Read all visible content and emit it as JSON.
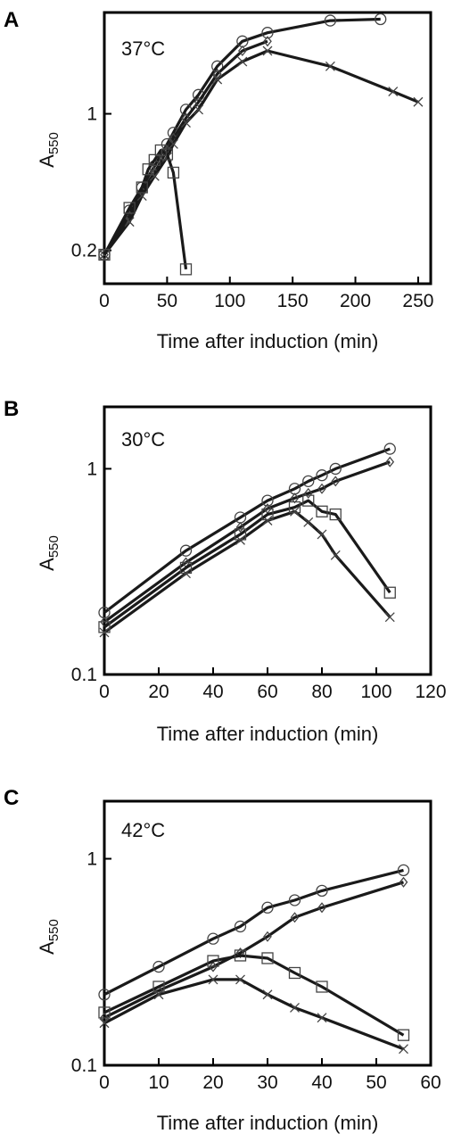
{
  "chart_data": [
    {
      "type": "line",
      "panel": "A",
      "temperature": "37°C",
      "xlabel": "Time after induction (min)",
      "ylabel": "A",
      "ylabel_sub": "550",
      "xlim": [
        0,
        260
      ],
      "xticks": [
        0,
        50,
        100,
        150,
        200,
        250
      ],
      "xtick_labels": [
        "0",
        "50",
        "100",
        "150",
        "200",
        "250"
      ],
      "yscale": "log",
      "ylim": [
        0.135,
        3.3
      ],
      "yticks": [
        0.2,
        1
      ],
      "ytick_labels": [
        "0.2",
        "1"
      ],
      "series": [
        {
          "marker": "circle",
          "x": [
            0,
            20,
            30,
            40,
            50,
            55,
            65,
            75,
            90,
            110,
            130,
            180,
            220
          ],
          "y": [
            0.19,
            0.32,
            0.42,
            0.54,
            0.7,
            0.8,
            1.05,
            1.25,
            1.75,
            2.35,
            2.6,
            3.0,
            3.05
          ]
        },
        {
          "marker": "diamond",
          "x": [
            0,
            20,
            30,
            40,
            50,
            55,
            65,
            75,
            90,
            110,
            130
          ],
          "y": [
            0.19,
            0.3,
            0.4,
            0.5,
            0.65,
            0.75,
            0.95,
            1.15,
            1.6,
            2.1,
            2.35
          ]
        },
        {
          "marker": "x",
          "x": [
            0,
            20,
            30,
            40,
            50,
            55,
            65,
            75,
            90,
            110,
            130,
            180,
            230,
            250
          ],
          "y": [
            0.19,
            0.28,
            0.38,
            0.48,
            0.6,
            0.7,
            0.9,
            1.05,
            1.5,
            1.85,
            2.1,
            1.75,
            1.3,
            1.15
          ]
        },
        {
          "marker": "square",
          "x": [
            0,
            20,
            30,
            35,
            40,
            45,
            50,
            55,
            65
          ],
          "y": [
            0.19,
            0.33,
            0.42,
            0.52,
            0.58,
            0.65,
            0.62,
            0.5,
            0.16
          ]
        }
      ]
    },
    {
      "type": "line",
      "panel": "B",
      "temperature": "30°C",
      "xlabel": "Time after induction (min)",
      "ylabel": "A",
      "ylabel_sub": "550",
      "xlim": [
        0,
        120
      ],
      "xticks": [
        0,
        20,
        40,
        60,
        80,
        100,
        120
      ],
      "xtick_labels": [
        "0",
        "20",
        "40",
        "60",
        "80",
        "100",
        "120"
      ],
      "yscale": "log",
      "ylim": [
        0.1,
        2.0
      ],
      "yticks": [
        0.1,
        1
      ],
      "ytick_labels": [
        "0.1",
        "1"
      ],
      "series": [
        {
          "marker": "circle",
          "x": [
            0,
            30,
            50,
            60,
            70,
            75,
            80,
            85,
            105
          ],
          "y": [
            0.2,
            0.4,
            0.58,
            0.7,
            0.8,
            0.87,
            0.93,
            1.0,
            1.25
          ]
        },
        {
          "marker": "diamond",
          "x": [
            0,
            30,
            50,
            60,
            70,
            75,
            80,
            85,
            105
          ],
          "y": [
            0.18,
            0.35,
            0.52,
            0.64,
            0.72,
            0.76,
            0.8,
            0.87,
            1.08
          ]
        },
        {
          "marker": "x",
          "x": [
            0,
            30,
            50,
            60,
            70,
            75,
            80,
            85,
            105
          ],
          "y": [
            0.16,
            0.31,
            0.45,
            0.56,
            0.62,
            0.55,
            0.48,
            0.38,
            0.19
          ]
        },
        {
          "marker": "square",
          "x": [
            0,
            30,
            50,
            60,
            70,
            75,
            80,
            85,
            105
          ],
          "y": [
            0.17,
            0.33,
            0.48,
            0.6,
            0.65,
            0.7,
            0.62,
            0.6,
            0.25
          ]
        }
      ]
    },
    {
      "type": "line",
      "panel": "C",
      "temperature": "42°C",
      "xlabel": "Time after induction (min)",
      "ylabel": "A",
      "ylabel_sub": "550",
      "xlim": [
        0,
        60
      ],
      "xticks": [
        0,
        10,
        20,
        30,
        40,
        50,
        60
      ],
      "xtick_labels": [
        "0",
        "10",
        "20",
        "30",
        "40",
        "50",
        "60"
      ],
      "yscale": "log",
      "ylim": [
        0.1,
        1.9
      ],
      "yticks": [
        0.1,
        1
      ],
      "ytick_labels": [
        "0.1",
        "1"
      ],
      "series": [
        {
          "marker": "circle",
          "x": [
            0,
            10,
            20,
            25,
            30,
            35,
            40,
            55
          ],
          "y": [
            0.22,
            0.3,
            0.41,
            0.47,
            0.58,
            0.63,
            0.7,
            0.88
          ]
        },
        {
          "marker": "diamond",
          "x": [
            0,
            10,
            20,
            25,
            30,
            35,
            40,
            55
          ],
          "y": [
            0.17,
            0.23,
            0.3,
            0.35,
            0.42,
            0.52,
            0.58,
            0.77
          ]
        },
        {
          "marker": "x",
          "x": [
            0,
            10,
            20,
            25,
            30,
            35,
            40,
            55
          ],
          "y": [
            0.16,
            0.22,
            0.26,
            0.26,
            0.22,
            0.19,
            0.17,
            0.12
          ]
        },
        {
          "marker": "square",
          "x": [
            0,
            10,
            20,
            25,
            30,
            35,
            40,
            55
          ],
          "y": [
            0.18,
            0.24,
            0.32,
            0.34,
            0.33,
            0.28,
            0.24,
            0.14
          ]
        }
      ]
    }
  ]
}
